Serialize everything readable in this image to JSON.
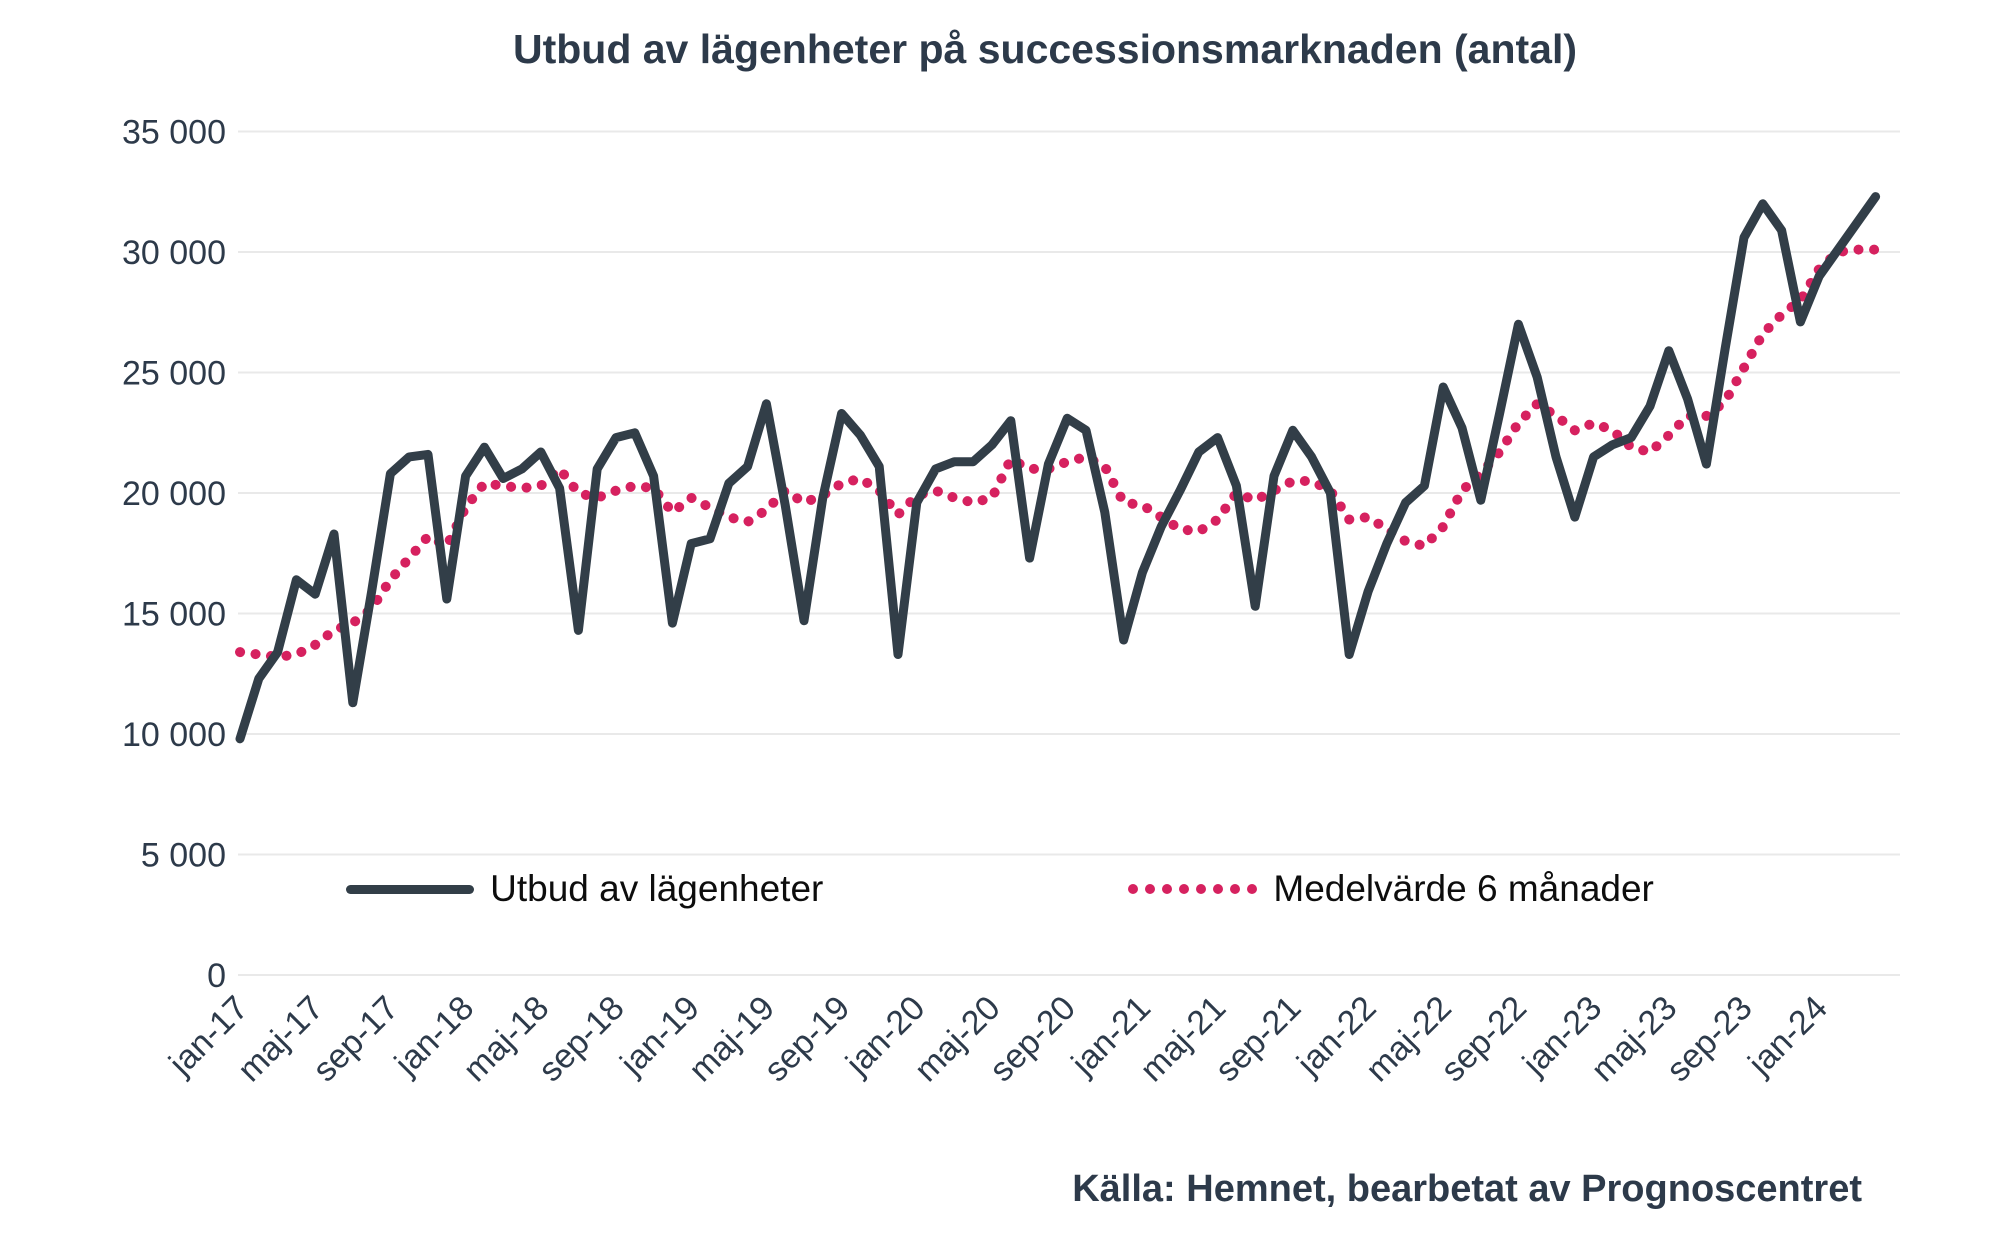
{
  "title": "Utbud av lägenheter på successionsmarknaden (antal)",
  "source": "Källa: Hemnet, bearbetat av Prognoscentret",
  "colors": {
    "line": "#323e48",
    "average": "#d6215f",
    "grid": "#e9e9e9",
    "axis_text": "#2d3a4a",
    "legend_text": "#0d0d0d",
    "background": "#ffffff"
  },
  "legend": {
    "items": [
      {
        "label": "Utbud av lägenheter",
        "style": "solid"
      },
      {
        "label": "Medelvärde 6 månader",
        "style": "dotted"
      }
    ]
  },
  "y_axis": {
    "tick_labels": [
      "0",
      "5 000",
      "10 000",
      "15 000",
      "20 000",
      "25 000",
      "30 000",
      "35 000"
    ],
    "min": 0,
    "max": 35000,
    "step": 5000
  },
  "x_axis": {
    "tick_labels": [
      "jan-17",
      "maj-17",
      "sep-17",
      "jan-18",
      "maj-18",
      "sep-18",
      "jan-19",
      "maj-19",
      "sep-19",
      "jan-20",
      "maj-20",
      "sep-20",
      "jan-21",
      "maj-21",
      "sep-21",
      "jan-22",
      "maj-22",
      "sep-22",
      "jan-23",
      "maj-23",
      "sep-23",
      "jan-24"
    ],
    "months_per_tick": 4
  },
  "chart_data": {
    "type": "line",
    "x_start": "jan-17",
    "x_end": "apr-24",
    "points_count": 88,
    "ylim": [
      0,
      35000
    ],
    "grid": true,
    "legend_position": "bottom",
    "series": [
      {
        "name": "Utbud av lägenheter",
        "style": "solid",
        "values": [
          9800,
          12300,
          13400,
          16400,
          15800,
          18300,
          11300,
          15900,
          20800,
          21500,
          21600,
          15600,
          20700,
          21900,
          20600,
          21000,
          21700,
          20200,
          14300,
          21000,
          22300,
          22500,
          20700,
          14600,
          17900,
          18100,
          20400,
          21100,
          23700,
          19500,
          14700,
          19800,
          23300,
          22400,
          21100,
          13300,
          19600,
          21000,
          21300,
          21300,
          22000,
          23000,
          17300,
          21200,
          23100,
          22600,
          19200,
          13900,
          16700,
          18600,
          20100,
          21700,
          22300,
          20300,
          15300,
          20700,
          22600,
          21500,
          20000,
          13300,
          15900,
          17900,
          19600,
          20300,
          24400,
          22700,
          19700,
          23300,
          27000,
          24800,
          21500,
          19000,
          21500,
          22000,
          22300,
          23600,
          25900,
          23900,
          21200,
          26000,
          30600,
          32000,
          30900,
          27100,
          29000,
          30100,
          31200,
          32300
        ]
      },
      {
        "name": "Medelvärde 6 månader",
        "style": "dotted",
        "values": [
          13400,
          13300,
          13200,
          13300,
          13700,
          14300,
          14600,
          15200,
          16400,
          17300,
          18200,
          17800,
          19400,
          20400,
          20300,
          20200,
          20300,
          21000,
          20000,
          19800,
          20100,
          20300,
          20200,
          19200,
          19800,
          19400,
          19000,
          18800,
          19300,
          20100,
          19600,
          19900,
          20400,
          20600,
          20100,
          19100,
          19900,
          20100,
          19800,
          19600,
          19800,
          21400,
          21000,
          21000,
          21300,
          21500,
          21100,
          19600,
          19500,
          19000,
          18500,
          18400,
          18900,
          20000,
          19700,
          20100,
          20500,
          20500,
          20100,
          18900,
          19000,
          18500,
          18000,
          17800,
          18600,
          20100,
          20800,
          21700,
          22900,
          23700,
          23200,
          22600,
          22900,
          22600,
          21900,
          21700,
          22400,
          23200,
          23200,
          23800,
          25200,
          26600,
          27400,
          28000,
          29300,
          30000,
          30100,
          30100
        ]
      }
    ]
  }
}
